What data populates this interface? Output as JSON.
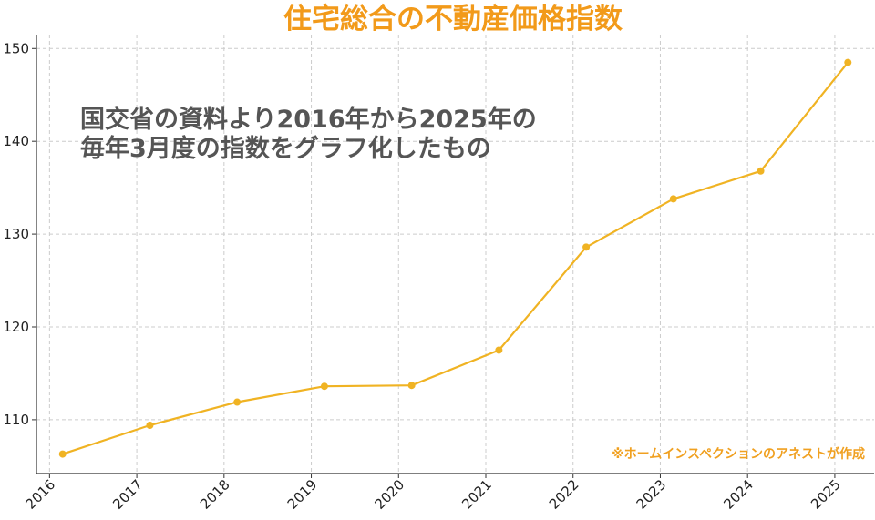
{
  "chart_data": {
    "type": "line",
    "title": "住宅総合の不動産価格指数",
    "xlabel": "",
    "ylabel": "",
    "categories": [
      "2016",
      "2017",
      "2018",
      "2019",
      "2020",
      "2021",
      "2022",
      "2023",
      "2024",
      "2025"
    ],
    "x": [
      2016.15,
      2017.15,
      2018.15,
      2019.15,
      2020.15,
      2021.15,
      2022.15,
      2023.15,
      2024.15,
      2025.15
    ],
    "values": [
      106.3,
      109.4,
      111.9,
      113.6,
      113.7,
      117.5,
      128.6,
      133.8,
      136.8,
      148.5
    ],
    "ylim": [
      104.2,
      151.5
    ],
    "xlim": [
      2015.85,
      2025.45
    ],
    "yticks": [
      "110",
      "120",
      "130",
      "140",
      "150"
    ],
    "grid": true,
    "legend": "none",
    "annotation_lines": [
      "国交省の資料より2016年から2025年の",
      "毎年3月度の指数をグラフ化したもの"
    ],
    "credit": "※ホームインスペクションのアネストが作成",
    "colors": {
      "line": "#f0b323",
      "title": "#f29a1a",
      "credit": "#f0a020",
      "annotation": "#555555",
      "grid": "#cccccc",
      "axis": "#333333"
    }
  }
}
